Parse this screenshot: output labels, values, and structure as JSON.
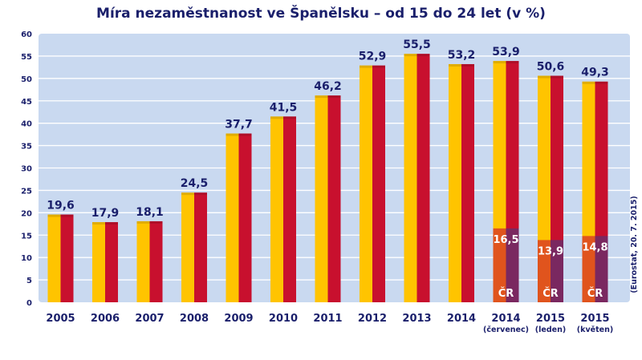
{
  "chart_data": {
    "type": "bar",
    "title": "Míra nezaměstnanost ve Španělsku – od 15 do 24 let (v %)",
    "source": "(Eurostat, 20. 7. 2015)",
    "ylim": [
      0,
      60
    ],
    "yticks": [
      0,
      5,
      10,
      15,
      20,
      25,
      30,
      35,
      40,
      45,
      50,
      55,
      60
    ],
    "grid": true,
    "categories": [
      {
        "label": "2005",
        "sublabel": ""
      },
      {
        "label": "2006",
        "sublabel": ""
      },
      {
        "label": "2007",
        "sublabel": ""
      },
      {
        "label": "2008",
        "sublabel": ""
      },
      {
        "label": "2009",
        "sublabel": ""
      },
      {
        "label": "2010",
        "sublabel": ""
      },
      {
        "label": "2011",
        "sublabel": ""
      },
      {
        "label": "2012",
        "sublabel": ""
      },
      {
        "label": "2013",
        "sublabel": ""
      },
      {
        "label": "2014",
        "sublabel": ""
      },
      {
        "label": "2014",
        "sublabel": "(červenec)"
      },
      {
        "label": "2015",
        "sublabel": "(leden)"
      },
      {
        "label": "2015",
        "sublabel": "(květen)"
      }
    ],
    "series": [
      {
        "name": "Španělsko",
        "values": [
          19.6,
          17.9,
          18.1,
          24.5,
          37.7,
          41.5,
          46.2,
          52.9,
          55.5,
          53.2,
          53.9,
          50.6,
          49.3
        ],
        "labels": [
          "19,6",
          "17,9",
          "18,1",
          "24,5",
          "37,7",
          "41,5",
          "46,2",
          "52,9",
          "55,5",
          "53,2",
          "53,9",
          "50,6",
          "49,3"
        ],
        "colors": {
          "left": "#ffc400",
          "right": "#c8102e"
        }
      },
      {
        "name": "ČR",
        "tag": "ČR",
        "values": [
          null,
          null,
          null,
          null,
          null,
          null,
          null,
          null,
          null,
          null,
          16.5,
          13.9,
          14.8
        ],
        "labels": [
          "",
          "",
          "",
          "",
          "",
          "",
          "",
          "",
          "",
          "",
          "16,5",
          "13,9",
          "14,8"
        ],
        "colors": {
          "left": "#e0541d",
          "right": "#7a2860"
        }
      }
    ],
    "colors": {
      "plot_bg": "#c9d9f0",
      "grid": "#ffffff",
      "text": "#1a1f6b"
    }
  }
}
